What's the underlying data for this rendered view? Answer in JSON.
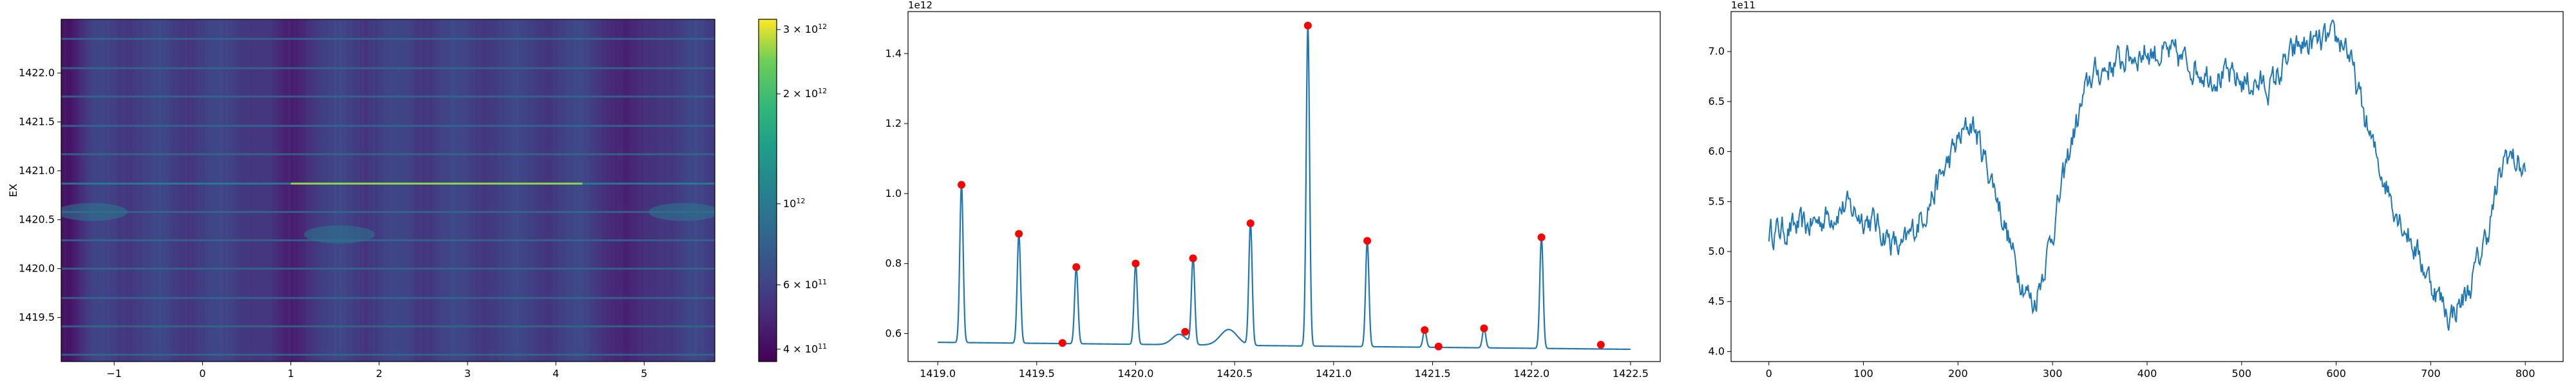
{
  "chart_data": [
    {
      "type": "heatmap",
      "ylabel": "EX",
      "xlim": [
        -1.6,
        5.8
      ],
      "ylim": [
        1419.05,
        1422.55
      ],
      "xticks": [
        -1,
        0,
        1,
        2,
        3,
        4,
        5
      ],
      "yticks": [
        1419.5,
        1420.0,
        1420.5,
        1421.0,
        1421.5,
        1422.0
      ],
      "colormap": "viridis",
      "color_scale": "log",
      "colorbar": {
        "ticks": [
          {
            "value": 3000000000000.0,
            "mant": "3",
            "exp": "12"
          },
          {
            "value": 2000000000000.0,
            "mant": "2",
            "exp": "12"
          },
          {
            "value": 1000000000000.0,
            "mant": "",
            "exp": "12"
          },
          {
            "value": 600000000000.0,
            "mant": "6",
            "exp": "11"
          },
          {
            "value": 400000000000.0,
            "mant": "4",
            "exp": "11"
          }
        ],
        "range": [
          370000000000.0,
          3200000000000.0
        ]
      },
      "bright_lines_y": [
        1419.12,
        1419.41,
        1419.7,
        1420.0,
        1420.29,
        1420.58,
        1420.87,
        1421.17,
        1421.46,
        1421.76,
        1422.05,
        1422.35
      ],
      "dark_bands_x": [
        -1.55,
        0.95,
        4.85
      ]
    },
    {
      "type": "line",
      "offset_label": "1e12",
      "xlim": [
        1418.85,
        1422.65
      ],
      "ylim": [
        0.52,
        1.52
      ],
      "xticks": [
        "1419.0",
        "1419.5",
        "1420.0",
        "1420.5",
        "1421.0",
        "1421.5",
        "1422.0",
        "1422.5"
      ],
      "yticks": [
        "0.6",
        "0.8",
        "1.0",
        "1.2",
        "1.4"
      ],
      "baseline": 0.575,
      "peaks": [
        {
          "x": 1419.12,
          "y": 1.025
        },
        {
          "x": 1419.41,
          "y": 0.885
        },
        {
          "x": 1419.7,
          "y": 0.79
        },
        {
          "x": 1420.0,
          "y": 0.8
        },
        {
          "x": 1420.29,
          "y": 0.815
        },
        {
          "x": 1420.58,
          "y": 0.915
        },
        {
          "x": 1420.87,
          "y": 1.48
        },
        {
          "x": 1421.17,
          "y": 0.865
        },
        {
          "x": 1421.46,
          "y": 0.61
        },
        {
          "x": 1421.76,
          "y": 0.615
        },
        {
          "x": 1422.05,
          "y": 0.875
        }
      ],
      "marker_points": [
        {
          "x": 1419.12,
          "y": 1.025
        },
        {
          "x": 1419.41,
          "y": 0.885
        },
        {
          "x": 1419.63,
          "y": 0.573
        },
        {
          "x": 1419.7,
          "y": 0.79
        },
        {
          "x": 1420.0,
          "y": 0.8
        },
        {
          "x": 1420.25,
          "y": 0.605
        },
        {
          "x": 1420.29,
          "y": 0.815
        },
        {
          "x": 1420.58,
          "y": 0.915
        },
        {
          "x": 1420.87,
          "y": 1.48
        },
        {
          "x": 1421.17,
          "y": 0.865
        },
        {
          "x": 1421.46,
          "y": 0.61
        },
        {
          "x": 1421.53,
          "y": 0.563
        },
        {
          "x": 1421.76,
          "y": 0.615
        },
        {
          "x": 1422.05,
          "y": 0.875
        },
        {
          "x": 1422.35,
          "y": 0.568
        }
      ],
      "line_color": "#1f77b4",
      "marker_color": "#ff0000"
    },
    {
      "type": "line",
      "offset_label": "1e11",
      "xlim": [
        -40,
        840
      ],
      "ylim": [
        3.9,
        7.4
      ],
      "xticks": [
        0,
        100,
        200,
        300,
        400,
        500,
        600,
        700,
        800
      ],
      "yticks": [
        "4.0",
        "4.5",
        "5.0",
        "5.5",
        "6.0",
        "6.5",
        "7.0"
      ],
      "trend": [
        [
          0,
          5.2
        ],
        [
          40,
          5.25
        ],
        [
          80,
          5.45
        ],
        [
          110,
          5.3
        ],
        [
          140,
          5.0
        ],
        [
          170,
          5.5
        ],
        [
          200,
          6.1
        ],
        [
          215,
          6.3
        ],
        [
          240,
          5.6
        ],
        [
          260,
          4.9
        ],
        [
          280,
          4.45
        ],
        [
          300,
          5.2
        ],
        [
          320,
          6.1
        ],
        [
          340,
          6.75
        ],
        [
          360,
          6.85
        ],
        [
          380,
          6.95
        ],
        [
          400,
          7.0
        ],
        [
          430,
          6.95
        ],
        [
          460,
          6.8
        ],
        [
          500,
          6.7
        ],
        [
          530,
          6.65
        ],
        [
          560,
          7.05
        ],
        [
          590,
          7.1
        ],
        [
          610,
          7.1
        ],
        [
          620,
          6.7
        ],
        [
          640,
          6.0
        ],
        [
          660,
          5.5
        ],
        [
          680,
          5.1
        ],
        [
          700,
          4.7
        ],
        [
          720,
          4.35
        ],
        [
          740,
          4.6
        ],
        [
          760,
          5.2
        ],
        [
          780,
          6.0
        ],
        [
          800,
          5.8
        ]
      ],
      "line_color": "#1f77b4"
    }
  ]
}
